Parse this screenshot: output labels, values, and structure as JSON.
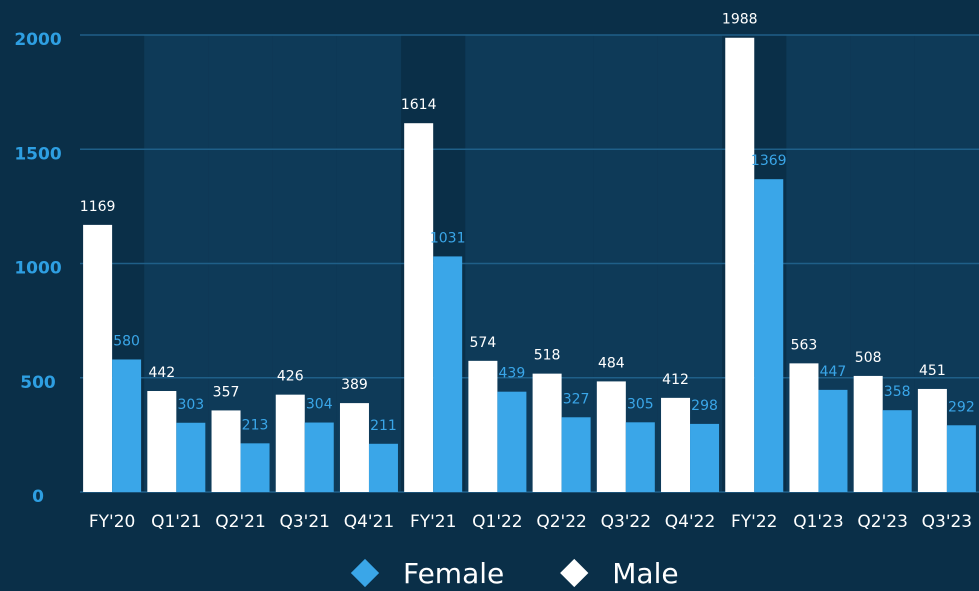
{
  "chart_data": {
    "type": "bar",
    "categories": [
      "FY'20",
      "Q1'21",
      "Q2'21",
      "Q3'21",
      "Q4'21",
      "FY'21",
      "Q1'22",
      "Q2'22",
      "Q3'22",
      "Q4'22",
      "FY'22",
      "Q1'23",
      "Q2'23",
      "Q3'23"
    ],
    "series": [
      {
        "name": "Male",
        "color": "#ffffff",
        "values": [
          1169,
          442,
          357,
          426,
          389,
          1614,
          574,
          518,
          484,
          412,
          1988,
          563,
          508,
          451
        ]
      },
      {
        "name": "Female",
        "color": "#3aa6e8",
        "values": [
          580,
          303,
          213,
          304,
          211,
          1031,
          439,
          327,
          305,
          298,
          1369,
          447,
          358,
          292
        ]
      }
    ],
    "ylim": [
      0,
      2000
    ],
    "yticks": [
      0,
      500,
      1000,
      1500,
      2000
    ],
    "grid": true,
    "legend": "bottom"
  }
}
